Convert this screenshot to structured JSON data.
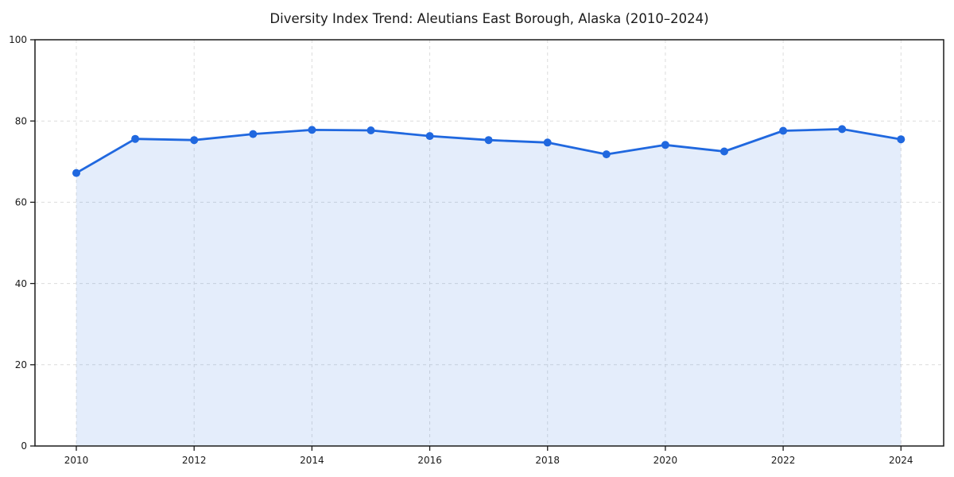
{
  "page": {
    "background": "#ffffff"
  },
  "chart_data": {
    "type": "area",
    "title": "Diversity Index Trend: Aleutians East Borough, Alaska (2010–2024)",
    "x": [
      2010,
      2011,
      2012,
      2013,
      2014,
      2015,
      2016,
      2017,
      2018,
      2019,
      2020,
      2021,
      2022,
      2023,
      2024
    ],
    "series": [
      {
        "name": "Diversity Index",
        "values": [
          67.2,
          75.6,
          75.3,
          76.8,
          77.8,
          77.7,
          76.3,
          75.3,
          74.7,
          71.8,
          74.1,
          72.5,
          77.6,
          78.0,
          75.5
        ]
      }
    ],
    "xlabel": "",
    "ylabel": "",
    "ylim": [
      0,
      100
    ],
    "yticks": [
      0,
      20,
      40,
      60,
      80,
      100
    ],
    "xticks": [
      2010,
      2012,
      2014,
      2016,
      2018,
      2020,
      2022,
      2024
    ],
    "grid": true,
    "grid_style": "dashed",
    "legend_position": "none",
    "colors": {
      "line": "#2068df",
      "marker": "#2068df",
      "fill": "rgba(32,104,223,0.12)",
      "grid": "#dcdcdc",
      "axis": "#1a1a1a",
      "text": "#1a1a1a"
    }
  }
}
